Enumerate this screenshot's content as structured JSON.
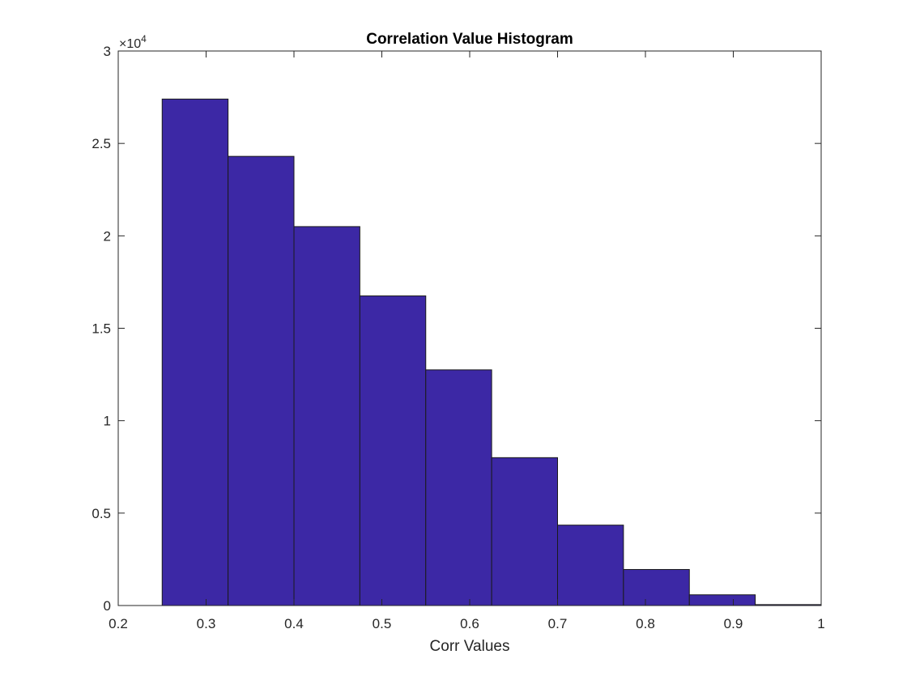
{
  "chart_data": {
    "type": "bar",
    "title": "Correlation Value Histogram",
    "xlabel": "Corr Values",
    "ylabel": "",
    "xlim": [
      0.2,
      1
    ],
    "ylim": [
      0,
      30000
    ],
    "x_ticks": [
      "0.2",
      "0.3",
      "0.4",
      "0.5",
      "0.6",
      "0.7",
      "0.8",
      "0.9",
      "1"
    ],
    "y_ticks": [
      "0",
      "0.5",
      "1",
      "1.5",
      "2",
      "2.5",
      "3"
    ],
    "y_exponent": {
      "base": "×10",
      "power": "4"
    },
    "bin_edges": [
      0.25,
      0.325,
      0.4,
      0.475,
      0.55,
      0.625,
      0.7,
      0.775,
      0.85,
      0.925,
      1.0
    ],
    "values": [
      27400,
      24300,
      20500,
      16750,
      12750,
      8000,
      4350,
      1950,
      580,
      50
    ],
    "bar_color": "#3c28a5",
    "grid": false,
    "box": true
  }
}
